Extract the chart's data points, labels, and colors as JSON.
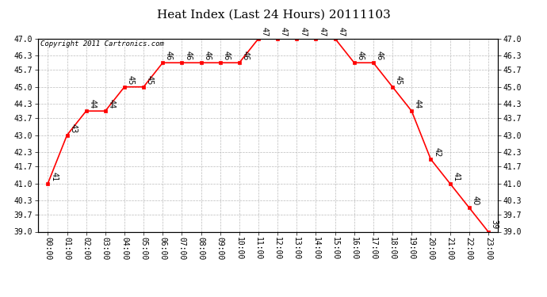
{
  "title": "Heat Index (Last 24 Hours) 20111103",
  "copyright": "Copyright 2011 Cartronics.com",
  "hours": [
    "00:00",
    "01:00",
    "02:00",
    "03:00",
    "04:00",
    "05:00",
    "06:00",
    "07:00",
    "08:00",
    "09:00",
    "10:00",
    "11:00",
    "12:00",
    "13:00",
    "14:00",
    "15:00",
    "16:00",
    "17:00",
    "18:00",
    "19:00",
    "20:00",
    "21:00",
    "22:00",
    "23:00"
  ],
  "values": [
    41,
    43,
    44,
    44,
    45,
    45,
    46,
    46,
    46,
    46,
    46,
    47,
    47,
    47,
    47,
    47,
    46,
    46,
    45,
    44,
    42,
    41,
    40,
    39
  ],
  "ylim_min": 39.0,
  "ylim_max": 47.0,
  "yticks": [
    39.0,
    39.7,
    40.3,
    41.0,
    41.7,
    42.3,
    43.0,
    43.7,
    44.3,
    45.0,
    45.7,
    46.3,
    47.0
  ],
  "line_color": "red",
  "marker": "s",
  "marker_size": 3,
  "bg_color": "#ffffff",
  "grid_color": "#bbbbbb",
  "title_fontsize": 11,
  "tick_fontsize": 7,
  "annot_fontsize": 7,
  "copyright_fontsize": 6.5
}
